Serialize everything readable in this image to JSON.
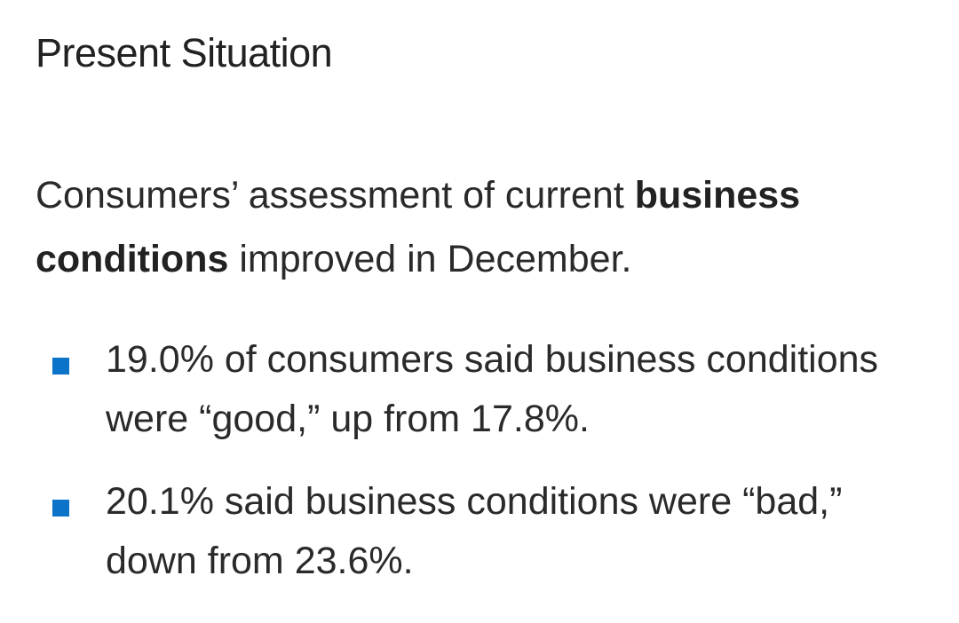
{
  "heading": "Present Situation",
  "intro": {
    "part1": "Consumers’ assessment of current ",
    "emphasis": "business conditions",
    "part2": " improved in December."
  },
  "bullets": [
    "19.0% of consumers said business conditions were “good,” up from 17.8%.",
    "20.1% said business conditions were “bad,” down from 23.6%."
  ],
  "colors": {
    "bullet_marker": "#0b74c9",
    "text": "#2a2a2a",
    "background": "#ffffff"
  }
}
